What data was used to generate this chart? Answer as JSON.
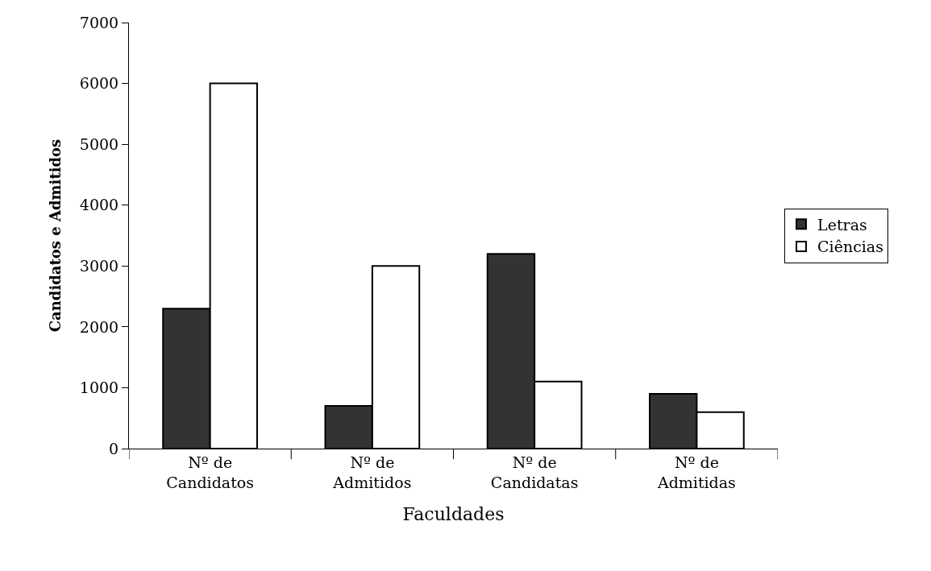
{
  "chart_data": {
    "type": "bar",
    "xlabel": "Faculdades",
    "ylabel": "Candidatos e Admitidos",
    "categories": [
      "Nº de\nCandidatos",
      "Nº de\nAdmitidos",
      "Nº de\nCandidatas",
      "Nº de\nAdmitidas"
    ],
    "series": [
      {
        "name": "Letras",
        "color": "#333333",
        "values": [
          2300,
          700,
          3200,
          900
        ]
      },
      {
        "name": "Ciências",
        "color": "#ffffff",
        "values": [
          6000,
          3000,
          1100,
          600
        ]
      }
    ],
    "ylim": [
      0,
      7000
    ],
    "yticks": [
      0,
      1000,
      2000,
      3000,
      4000,
      5000,
      6000,
      7000
    ],
    "grid": false,
    "legend": "right"
  }
}
